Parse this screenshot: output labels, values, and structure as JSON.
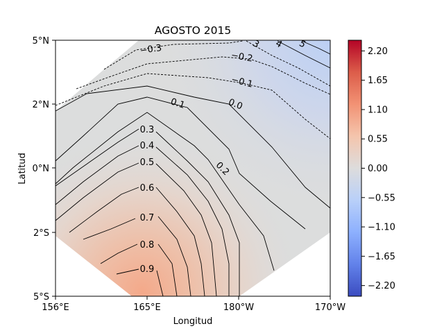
{
  "chart_data": {
    "type": "contour",
    "title": "AGOSTO 2015",
    "xlabel": "Longitud",
    "ylabel": "Latitud",
    "x_ticks": [
      "156°E",
      "165°E",
      "180°W",
      "170°W"
    ],
    "y_ticks": [
      "5°N",
      "2°N",
      "0°N",
      "2°S",
      "5°S"
    ],
    "colorbar": {
      "colormap": "coolwarm",
      "range": [
        -2.4,
        2.4
      ],
      "ticks": [
        "2.20",
        "1.65",
        "1.10",
        "0.55",
        "0.00",
        "−0.55",
        "−1.10",
        "−1.65",
        "−2.20"
      ],
      "tick_values": [
        2.2,
        1.65,
        1.1,
        0.55,
        0.0,
        -0.55,
        -1.1,
        -1.65,
        -2.2
      ]
    },
    "contour_labels": [
      "−0.3",
      "−0.2",
      "−0.1",
      "0.0",
      "0.1",
      "0.2",
      "0.3",
      "0.4",
      "0.5",
      "0.6",
      "0.7",
      "0.8",
      "0.9"
    ],
    "partial_labels": [
      "3",
      "4",
      "5"
    ],
    "colors": {
      "warm_peak": "#f4a98a",
      "neutral": "#dcdddd",
      "cool_corner": "#bcd0f4"
    }
  }
}
